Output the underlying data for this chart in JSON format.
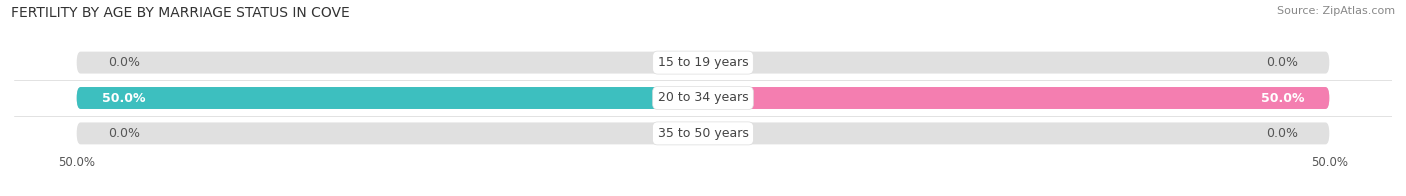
{
  "title": "FERTILITY BY AGE BY MARRIAGE STATUS IN COVE",
  "source": "Source: ZipAtlas.com",
  "categories": [
    "15 to 19 years",
    "20 to 34 years",
    "35 to 50 years"
  ],
  "married_values": [
    0.0,
    50.0,
    0.0
  ],
  "unmarried_values": [
    0.0,
    50.0,
    0.0
  ],
  "max_value": 50.0,
  "married_color": "#3dbfbf",
  "unmarried_color": "#f47eb0",
  "married_bg_color": "#b8e8e8",
  "unmarried_bg_color": "#f8c8d8",
  "bg_bar_color": "#e0e0e0",
  "title_fontsize": 10,
  "source_fontsize": 8,
  "label_fontsize": 9,
  "bar_label_fontsize": 9,
  "legend_fontsize": 9,
  "axis_label_fontsize": 8.5,
  "figure_bg": "#ffffff",
  "bar_height": 0.62,
  "xlim": [
    -55,
    55
  ],
  "xticks": [
    -50.0,
    50.0
  ],
  "xticklabels": [
    "50.0%",
    "50.0%"
  ]
}
